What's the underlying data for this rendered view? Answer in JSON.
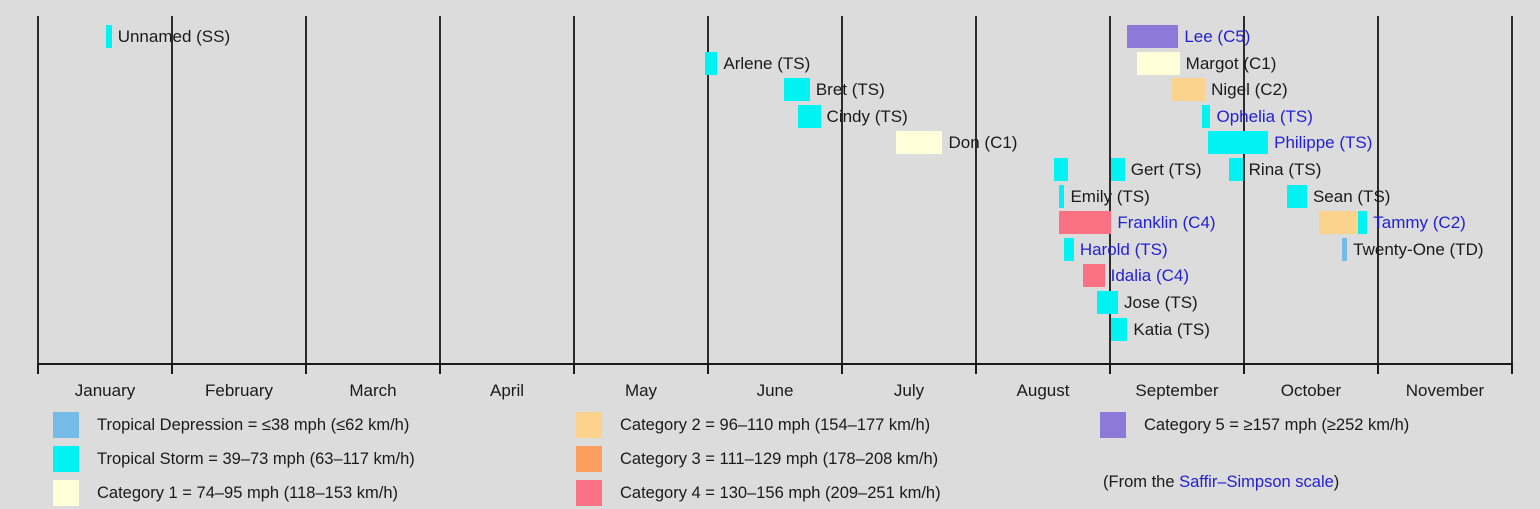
{
  "colors": {
    "TD": "#74bbe8",
    "TS": "#00f2f2",
    "C1": "#ffffd9",
    "C2": "#fcd38d",
    "C3": "#fc9e5e",
    "C4": "#fa7183",
    "C5": "#8b7ad8",
    "link_blue": "#2422cf",
    "text": "#1a1a1a",
    "background": "#dcdcdc",
    "axis": "#1a1a1a"
  },
  "chart_data": {
    "type": "timeline",
    "title": "",
    "xlabel": "",
    "ylabel": "",
    "xlim_months": [
      0,
      11
    ],
    "grid": "vertical line at each month boundary",
    "legend_position": "bottom, three columns",
    "months": [
      "January",
      "February",
      "March",
      "April",
      "May",
      "June",
      "July",
      "August",
      "September",
      "October",
      "November"
    ],
    "storms": [
      {
        "name": "Unnamed (SS)",
        "row": 0,
        "link": false,
        "segments": [
          {
            "cat": "TS",
            "start": 0.51,
            "end": 0.55
          }
        ]
      },
      {
        "name": "Arlene (TS)",
        "row": 1,
        "link": false,
        "segments": [
          {
            "cat": "TS",
            "start": 4.98,
            "end": 5.07
          }
        ]
      },
      {
        "name": "Bret (TS)",
        "row": 2,
        "link": false,
        "segments": [
          {
            "cat": "TS",
            "start": 5.57,
            "end": 5.76
          }
        ]
      },
      {
        "name": "Cindy (TS)",
        "row": 3,
        "link": false,
        "segments": [
          {
            "cat": "TS",
            "start": 5.67,
            "end": 5.84
          }
        ]
      },
      {
        "name": "Don (C1)",
        "row": 4,
        "link": false,
        "segments": [
          {
            "cat": "C1",
            "start": 6.4,
            "end": 6.75
          }
        ]
      },
      {
        "name": "Gert (TS)",
        "row": 5,
        "link": false,
        "segments": [
          {
            "cat": "TS",
            "start": 7.58,
            "end": 7.69
          },
          {
            "cat": "TS",
            "start": 8.01,
            "end": 8.11
          }
        ]
      },
      {
        "name": "Emily (TS)",
        "row": 6,
        "link": false,
        "segments": [
          {
            "cat": "TS",
            "start": 7.62,
            "end": 7.66
          }
        ]
      },
      {
        "name": "Franklin (C4)",
        "row": 7,
        "link": true,
        "segments": [
          {
            "cat": "C4",
            "start": 7.62,
            "end": 8.01
          }
        ]
      },
      {
        "name": "Harold (TS)",
        "row": 8,
        "link": true,
        "segments": [
          {
            "cat": "TS",
            "start": 7.66,
            "end": 7.73
          }
        ]
      },
      {
        "name": "Idalia (C4)",
        "row": 9,
        "link": true,
        "segments": [
          {
            "cat": "C4",
            "start": 7.8,
            "end": 7.96
          }
        ]
      },
      {
        "name": "Jose (TS)",
        "row": 10,
        "link": false,
        "segments": [
          {
            "cat": "TS",
            "start": 7.9,
            "end": 8.06
          }
        ]
      },
      {
        "name": "Katia (TS)",
        "row": 11,
        "link": false,
        "segments": [
          {
            "cat": "TS",
            "start": 8.01,
            "end": 8.13
          }
        ]
      },
      {
        "name": "Lee (C5)",
        "row": 0,
        "link": true,
        "segments": [
          {
            "cat": "C5",
            "start": 8.13,
            "end": 8.51
          }
        ]
      },
      {
        "name": "Margot (C1)",
        "row": 1,
        "link": false,
        "segments": [
          {
            "cat": "C1",
            "start": 8.2,
            "end": 8.52
          }
        ]
      },
      {
        "name": "Nigel (C2)",
        "row": 2,
        "link": false,
        "segments": [
          {
            "cat": "C2",
            "start": 8.46,
            "end": 8.71
          }
        ]
      },
      {
        "name": "Ophelia (TS)",
        "row": 3,
        "link": true,
        "segments": [
          {
            "cat": "TS",
            "start": 8.69,
            "end": 8.75
          }
        ]
      },
      {
        "name": "Philippe (TS)",
        "row": 4,
        "link": true,
        "segments": [
          {
            "cat": "TS",
            "start": 8.73,
            "end": 9.18
          }
        ]
      },
      {
        "name": "Rina (TS)",
        "row": 5,
        "link": false,
        "segments": [
          {
            "cat": "TS",
            "start": 8.89,
            "end": 8.99
          }
        ]
      },
      {
        "name": "Sean (TS)",
        "row": 6,
        "link": false,
        "segments": [
          {
            "cat": "TS",
            "start": 9.32,
            "end": 9.47
          }
        ]
      },
      {
        "name": "Tammy (C2)",
        "row": 7,
        "link": true,
        "segments": [
          {
            "cat": "C2",
            "start": 9.56,
            "end": 9.84
          },
          {
            "cat": "TS",
            "start": 9.85,
            "end": 9.92
          }
        ]
      },
      {
        "name": "Twenty-One (TD)",
        "row": 8,
        "link": false,
        "segments": [
          {
            "cat": "TD",
            "start": 9.73,
            "end": 9.77
          }
        ]
      }
    ]
  },
  "legend": {
    "columns": [
      [
        {
          "cat": "TD",
          "label": "Tropical Depression = ≤38 mph (≤62 km/h)"
        },
        {
          "cat": "TS",
          "label": "Tropical Storm = 39–73 mph (63–117 km/h)"
        },
        {
          "cat": "C1",
          "label": "Category 1 = 74–95 mph (118–153 km/h)"
        }
      ],
      [
        {
          "cat": "C2",
          "label": "Category 2 = 96–110 mph (154–177 km/h)"
        },
        {
          "cat": "C3",
          "label": "Category 3 = 111–129 mph (178–208 km/h)"
        },
        {
          "cat": "C4",
          "label": "Category 4 = 130–156 mph (209–251 km/h)"
        }
      ],
      [
        {
          "cat": "C5",
          "label": "Category 5 = ≥157 mph (≥252 km/h)"
        }
      ]
    ],
    "note_prefix": "(From the ",
    "note_link": "Saffir–Simpson scale",
    "note_suffix": ")"
  }
}
